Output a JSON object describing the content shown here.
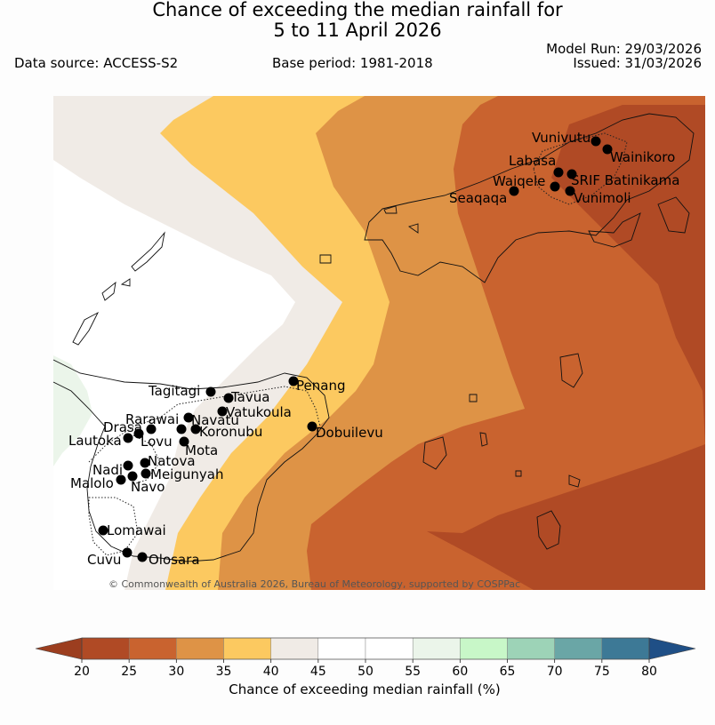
{
  "title_line1": "Chance of exceeding the median rainfall for",
  "title_line2": "5 to 11 April 2026",
  "data_source": "Data source: ACCESS-S2",
  "base_period": "Base period: 1981-2018",
  "model_run": "Model Run: 29/03/2026",
  "issued": "Issued: 31/03/2026",
  "credit": "© Commonwealth of Australia 2026, Bureau of Meteorology, supported by COSPPac",
  "colorbar": {
    "label": "Chance of exceeding median rainfall (%)",
    "ticks": [
      "20",
      "25",
      "30",
      "35",
      "40",
      "45",
      "50",
      "55",
      "60",
      "65",
      "70",
      "75",
      "80"
    ],
    "colors": [
      "#b04a25",
      "#c9632f",
      "#de9346",
      "#fcc960",
      "#f0ebe6",
      "#ffffff",
      "#ffffff",
      "#ebf5ea",
      "#c8f7c8",
      "#9dd3b7",
      "#6aa6a6",
      "#3d7996"
    ],
    "under_color": "#9c3e1f",
    "over_color": "#1f4f86"
  },
  "stations": [
    {
      "name": "Vunivutu"
    },
    {
      "name": "Wainikoro"
    },
    {
      "name": "Labasa"
    },
    {
      "name": "SRIF Batinikama"
    },
    {
      "name": "Waiqele"
    },
    {
      "name": "Seaqaqa"
    },
    {
      "name": "Vunimoli"
    },
    {
      "name": "Tagitagi"
    },
    {
      "name": "Tavua"
    },
    {
      "name": "Penang"
    },
    {
      "name": "Vatukoula"
    },
    {
      "name": "Rarawai"
    },
    {
      "name": "Navatu"
    },
    {
      "name": "Drasa"
    },
    {
      "name": "Koronubu"
    },
    {
      "name": "Lautoka"
    },
    {
      "name": "Lovu"
    },
    {
      "name": "Dobuilevu"
    },
    {
      "name": "Mota"
    },
    {
      "name": "Natova"
    },
    {
      "name": "Nadi"
    },
    {
      "name": "Meigunyah"
    },
    {
      "name": "Malolo"
    },
    {
      "name": "Navo"
    },
    {
      "name": "Lomawai"
    },
    {
      "name": "Cuvu"
    },
    {
      "name": "Olosara"
    }
  ]
}
